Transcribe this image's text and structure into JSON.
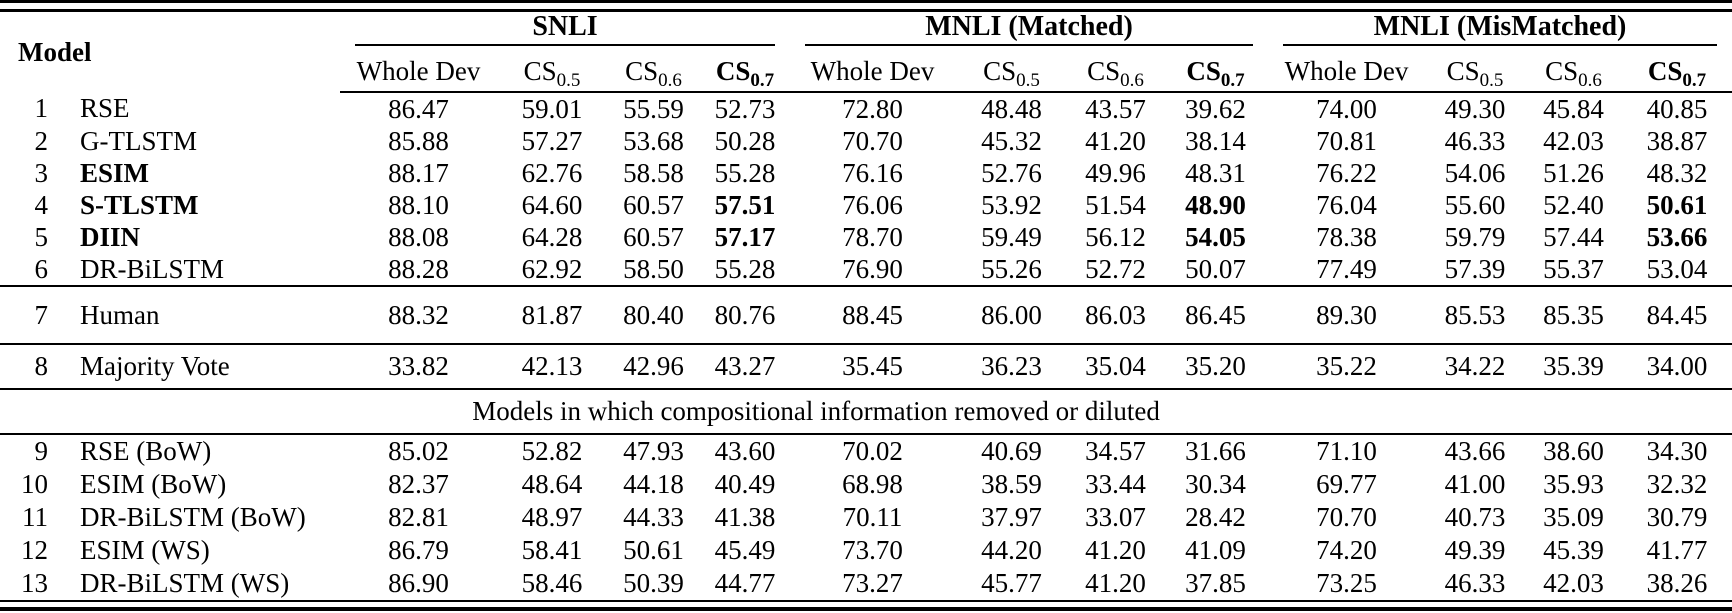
{
  "colors": {
    "background": "#ffffff",
    "text": "#000000",
    "rule": "#000000"
  },
  "table": {
    "model_header": "Model",
    "groups": [
      {
        "label": "SNLI"
      },
      {
        "label": "MNLI (Matched)"
      },
      {
        "label": "MNLI (MisMatched)"
      }
    ],
    "sub_columns": [
      {
        "label": "Whole Dev",
        "sub": "",
        "bold": false
      },
      {
        "label": "CS",
        "sub": "0.5",
        "bold": false
      },
      {
        "label": "CS",
        "sub": "0.6",
        "bold": false
      },
      {
        "label": "CS",
        "sub": "0.7",
        "bold": true
      }
    ],
    "section_header": "Models in which compositional information removed or diluted",
    "rows": [
      {
        "num": "1",
        "section": "main",
        "model": "RSE",
        "model_bold": false,
        "bold_cols": [],
        "values": [
          "86.47",
          "59.01",
          "55.59",
          "52.73",
          "72.80",
          "48.48",
          "43.57",
          "39.62",
          "74.00",
          "49.30",
          "45.84",
          "40.85"
        ]
      },
      {
        "num": "2",
        "section": "main",
        "model": "G-TLSTM",
        "model_bold": false,
        "bold_cols": [],
        "values": [
          "85.88",
          "57.27",
          "53.68",
          "50.28",
          "70.70",
          "45.32",
          "41.20",
          "38.14",
          "70.81",
          "46.33",
          "42.03",
          "38.87"
        ]
      },
      {
        "num": "3",
        "section": "main",
        "model": "ESIM",
        "model_bold": true,
        "bold_cols": [],
        "values": [
          "88.17",
          "62.76",
          "58.58",
          "55.28",
          "76.16",
          "52.76",
          "49.96",
          "48.31",
          "76.22",
          "54.06",
          "51.26",
          "48.32"
        ]
      },
      {
        "num": "4",
        "section": "main",
        "model": "S-TLSTM",
        "model_bold": true,
        "bold_cols": [
          3,
          7,
          11
        ],
        "values": [
          "88.10",
          "64.60",
          "60.57",
          "57.51",
          "76.06",
          "53.92",
          "51.54",
          "48.90",
          "76.04",
          "55.60",
          "52.40",
          "50.61"
        ]
      },
      {
        "num": "5",
        "section": "main",
        "model": "DIIN",
        "model_bold": true,
        "bold_cols": [
          3,
          7,
          11
        ],
        "values": [
          "88.08",
          "64.28",
          "60.57",
          "57.17",
          "78.70",
          "59.49",
          "56.12",
          "54.05",
          "78.38",
          "59.79",
          "57.44",
          "53.66"
        ]
      },
      {
        "num": "6",
        "section": "main",
        "model": "DR-BiLSTM",
        "model_bold": false,
        "bold_cols": [],
        "values": [
          "88.28",
          "62.92",
          "58.50",
          "55.28",
          "76.90",
          "55.26",
          "52.72",
          "50.07",
          "77.49",
          "57.39",
          "55.37",
          "53.04"
        ]
      },
      {
        "num": "7",
        "section": "human",
        "model": "Human",
        "model_bold": false,
        "bold_cols": [],
        "values": [
          "88.32",
          "81.87",
          "80.40",
          "80.76",
          "88.45",
          "86.00",
          "86.03",
          "86.45",
          "89.30",
          "85.53",
          "85.35",
          "84.45"
        ]
      },
      {
        "num": "8",
        "section": "majority",
        "model": "Majority Vote",
        "model_bold": false,
        "bold_cols": [],
        "values": [
          "33.82",
          "42.13",
          "42.96",
          "43.27",
          "35.45",
          "36.23",
          "35.04",
          "35.20",
          "35.22",
          "34.22",
          "35.39",
          "34.00"
        ]
      },
      {
        "num": "9",
        "section": "removed",
        "model": "RSE (BoW)",
        "model_bold": false,
        "bold_cols": [],
        "values": [
          "85.02",
          "52.82",
          "47.93",
          "43.60",
          "70.02",
          "40.69",
          "34.57",
          "31.66",
          "71.10",
          "43.66",
          "38.60",
          "34.30"
        ]
      },
      {
        "num": "10",
        "section": "removed",
        "model": "ESIM (BoW)",
        "model_bold": false,
        "bold_cols": [],
        "values": [
          "82.37",
          "48.64",
          "44.18",
          "40.49",
          "68.98",
          "38.59",
          "33.44",
          "30.34",
          "69.77",
          "41.00",
          "35.93",
          "32.32"
        ]
      },
      {
        "num": "11",
        "section": "removed",
        "model": "DR-BiLSTM (BoW)",
        "model_bold": false,
        "bold_cols": [],
        "values": [
          "82.81",
          "48.97",
          "44.33",
          "41.38",
          "70.11",
          "37.97",
          "33.07",
          "28.42",
          "70.70",
          "40.73",
          "35.09",
          "30.79"
        ]
      },
      {
        "num": "12",
        "section": "removed",
        "model": "ESIM (WS)",
        "model_bold": false,
        "bold_cols": [],
        "values": [
          "86.79",
          "58.41",
          "50.61",
          "45.49",
          "73.70",
          "44.20",
          "41.20",
          "41.09",
          "74.20",
          "49.39",
          "45.39",
          "41.77"
        ]
      },
      {
        "num": "13",
        "section": "removed",
        "model": "DR-BiLSTM (WS)",
        "model_bold": false,
        "bold_cols": [],
        "values": [
          "86.90",
          "58.46",
          "50.39",
          "44.77",
          "73.27",
          "45.77",
          "41.20",
          "37.85",
          "73.25",
          "46.33",
          "42.03",
          "38.26"
        ]
      }
    ]
  }
}
